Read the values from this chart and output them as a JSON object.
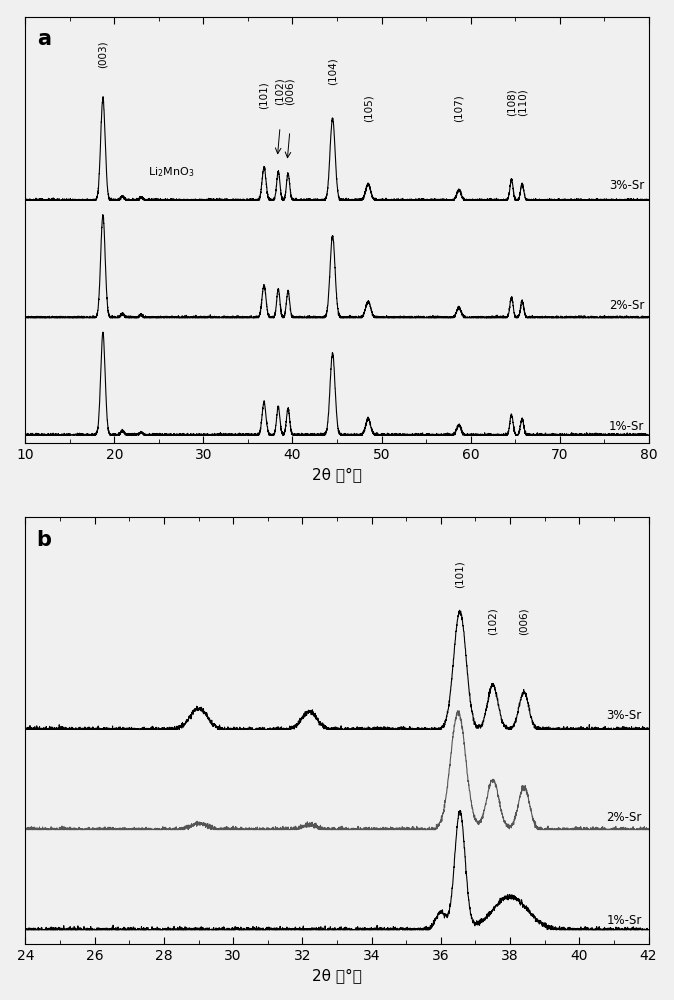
{
  "panel_a": {
    "xlim": [
      10,
      80
    ],
    "xlabel": "2θ （°）",
    "label": "a",
    "bg_color": "#f0f0f0",
    "peaks": {
      "003": 18.7,
      "101": 36.8,
      "102": 38.4,
      "006": 39.5,
      "104": 44.5,
      "105": 48.5,
      "107": 58.7,
      "108": 64.6,
      "110": 65.8
    }
  },
  "panel_b": {
    "xlim": [
      24,
      42
    ],
    "xlabel": "2θ （°）",
    "label": "b",
    "bg_color": "#f0f0f0",
    "peaks": {
      "101": 36.55,
      "102": 37.5,
      "006": 38.4
    }
  },
  "fig_bg": "#f0f0f0"
}
